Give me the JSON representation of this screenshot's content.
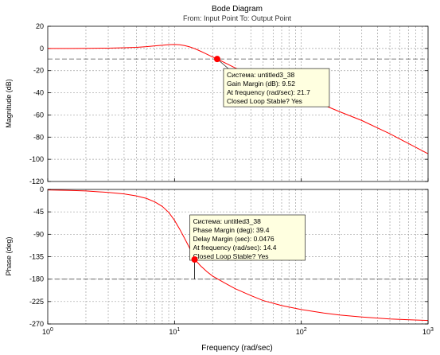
{
  "figure": {
    "title": "Bode Diagram",
    "subtitle": "From: Input Point  To: Output Point",
    "xlabel": "Frequency  (rad/sec)"
  },
  "colors": {
    "curve": "#ff0000",
    "grid": "#a0a0a0",
    "datatip_bg": "#ffffe0",
    "axes": "#000000"
  },
  "chart_data": [
    {
      "type": "line",
      "name": "magnitude",
      "ylabel": "Magnitude (dB)",
      "xscale": "log",
      "xlim": [
        1,
        1000
      ],
      "ylim": [
        -120,
        20
      ],
      "yticks": [
        20,
        0,
        -20,
        -40,
        -60,
        -80,
        -100,
        -120
      ],
      "grid": true,
      "reference_line": {
        "y": -9.52,
        "style": "dashed"
      },
      "series": [
        {
          "x": [
            1,
            1.5,
            2,
            3,
            4,
            5,
            6,
            7,
            8,
            9,
            10,
            11,
            12,
            13,
            14,
            15,
            17,
            19,
            21.7,
            25,
            30,
            40,
            50,
            70,
            100,
            150,
            200,
            300,
            500,
            1000
          ],
          "y": [
            0,
            0,
            0.1,
            0.3,
            0.6,
            1.0,
            1.6,
            2.3,
            2.9,
            3.4,
            3.6,
            3.3,
            2.6,
            1.6,
            0.4,
            -1.0,
            -3.8,
            -6.5,
            -9.52,
            -13,
            -17.5,
            -24,
            -29,
            -36.5,
            -43,
            -51,
            -57,
            -65,
            -77,
            -95
          ]
        }
      ],
      "datatip": {
        "x": 21.7,
        "y": -9.52,
        "lines": [
          "Система: untitled3_38",
          "Gain Margin (dB): 9.52",
          "At frequency (rad/sec): 21.7",
          "Closed Loop Stable? Yes"
        ]
      }
    },
    {
      "type": "line",
      "name": "phase",
      "ylabel": "Phase (deg)",
      "xscale": "log",
      "xlim": [
        1,
        1000
      ],
      "ylim": [
        -270,
        0
      ],
      "yticks": [
        0,
        -45,
        -90,
        -135,
        -180,
        -225,
        -270
      ],
      "grid": true,
      "reference_line": {
        "y": -180,
        "style": "dashed"
      },
      "series": [
        {
          "x": [
            1,
            1.5,
            2,
            3,
            4,
            5,
            6,
            7,
            8,
            9,
            10,
            11,
            12,
            13,
            14.4,
            16,
            18,
            20,
            25,
            30,
            40,
            50,
            70,
            100,
            150,
            200,
            300,
            500,
            1000
          ],
          "y": [
            -1,
            -2,
            -3,
            -6,
            -9,
            -13,
            -18,
            -25,
            -34,
            -46,
            -62,
            -80,
            -98,
            -115,
            -140,
            -153,
            -165,
            -174,
            -188,
            -199,
            -213,
            -223,
            -233,
            -241,
            -248,
            -252,
            -256,
            -260,
            -263
          ]
        }
      ],
      "datatip": {
        "x": 14.4,
        "y": -140.6,
        "lines": [
          "Система: untitled3_38",
          "Phase Margin (deg): 39.4",
          "Delay Margin (sec): 0.0476",
          "At frequency (rad/sec): 14.4",
          "Closed Loop Stable? Yes"
        ]
      }
    }
  ]
}
